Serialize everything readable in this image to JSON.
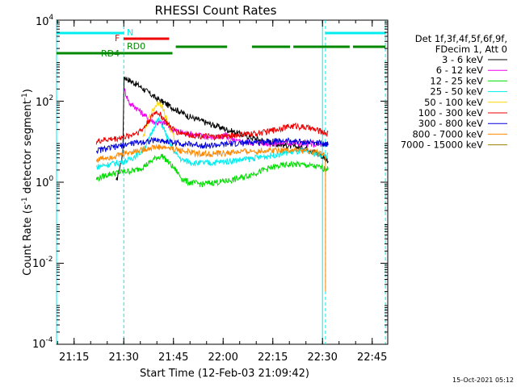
{
  "chart_data": {
    "type": "line",
    "title": "RHESSI Count Rates",
    "xlabel": "Start Time (12-Feb-03 21:09:42)",
    "ylabel_main": "Count Rate (s",
    "ylabel_sup1": "-1",
    "ylabel_mid": " detector segment",
    "ylabel_sup2": "-1",
    "ylabel_end": ")",
    "yscale": "log",
    "ylim": [
      0.0001,
      10000
    ],
    "xlim_minutes": [
      0,
      100
    ],
    "x_ticks": [
      {
        "label": "21:15",
        "minute": 5.3
      },
      {
        "label": "21:30",
        "minute": 20.3
      },
      {
        "label": "21:45",
        "minute": 35.3
      },
      {
        "label": "22:00",
        "minute": 50.3
      },
      {
        "label": "22:15",
        "minute": 65.3
      },
      {
        "label": "22:30",
        "minute": 80.3
      },
      {
        "label": "22:45",
        "minute": 95.3
      }
    ],
    "y_ticks": [
      {
        "base": "10",
        "exp": "4",
        "value": 10000
      },
      {
        "base": "10",
        "exp": "2",
        "value": 100
      },
      {
        "base": "10",
        "exp": "0",
        "value": 1
      },
      {
        "base": "10",
        "exp": "-2",
        "value": 0.01
      },
      {
        "base": "10",
        "exp": "-4",
        "value": 0.0001
      }
    ],
    "legend_header": [
      "Det 1f,3f,4f,5f,6f,9f,",
      "FDecim 1, Att 0"
    ],
    "legend_position": "right, outside plot",
    "series": [
      {
        "name": "3 - 6 keV",
        "color": "#000000",
        "points": [
          [
            18,
            1
          ],
          [
            19,
            2.2
          ],
          [
            20,
            5
          ],
          [
            20.4,
            400
          ],
          [
            22,
            330
          ],
          [
            25,
            240
          ],
          [
            30,
            120
          ],
          [
            35,
            70
          ],
          [
            40,
            42
          ],
          [
            45,
            30
          ],
          [
            50,
            22
          ],
          [
            55,
            16
          ],
          [
            60,
            12
          ],
          [
            64,
            10
          ],
          [
            68,
            8.5
          ],
          [
            72,
            7.5
          ],
          [
            76,
            7
          ],
          [
            78,
            5.5
          ],
          [
            80,
            4.5
          ],
          [
            82,
            3.5
          ]
        ]
      },
      {
        "name": "6 - 12 keV",
        "color": "#ee00ee",
        "points": [
          [
            20.4,
            200
          ],
          [
            22,
            90
          ],
          [
            24,
            70
          ],
          [
            26,
            50
          ],
          [
            28,
            35
          ],
          [
            30,
            30
          ],
          [
            33,
            28
          ],
          [
            35,
            20
          ],
          [
            38,
            17
          ],
          [
            40,
            16
          ],
          [
            42,
            15
          ],
          [
            44,
            14
          ],
          [
            46,
            13
          ],
          [
            48,
            13
          ],
          [
            50,
            12.5
          ],
          [
            51,
            16
          ],
          [
            52,
            11
          ],
          [
            55,
            10
          ],
          [
            60,
            9.5
          ],
          [
            65,
            9
          ],
          [
            70,
            9.5
          ],
          [
            75,
            9
          ],
          [
            80,
            8.5
          ]
        ]
      },
      {
        "name": "12 - 25 keV",
        "color": "#00dd00",
        "points": [
          [
            12,
            1.2
          ],
          [
            14,
            1.4
          ],
          [
            16,
            1.6
          ],
          [
            18,
            1.7
          ],
          [
            20,
            1.8
          ],
          [
            24,
            2
          ],
          [
            26,
            2.4
          ],
          [
            28,
            3
          ],
          [
            30,
            4
          ],
          [
            32,
            4.5
          ],
          [
            34,
            3
          ],
          [
            36,
            2
          ],
          [
            38,
            1.2
          ],
          [
            40,
            1
          ],
          [
            44,
            0.9
          ],
          [
            48,
            1
          ],
          [
            52,
            1.1
          ],
          [
            56,
            1.3
          ],
          [
            60,
            1.7
          ],
          [
            64,
            2.2
          ],
          [
            68,
            2.6
          ],
          [
            72,
            2.8
          ],
          [
            76,
            2.6
          ],
          [
            80,
            2.3
          ],
          [
            82,
            2.1
          ]
        ]
      },
      {
        "name": "25 - 50 keV",
        "color": "#00eeee",
        "points": [
          [
            12,
            2.4
          ],
          [
            14,
            2.6
          ],
          [
            16,
            2.8
          ],
          [
            18,
            3
          ],
          [
            22,
            3.6
          ],
          [
            26,
            6
          ],
          [
            28,
            12
          ],
          [
            30,
            30
          ],
          [
            31,
            35
          ],
          [
            32,
            25
          ],
          [
            34,
            10
          ],
          [
            36,
            5
          ],
          [
            38,
            3.5
          ],
          [
            42,
            3
          ],
          [
            46,
            3
          ],
          [
            50,
            3.2
          ],
          [
            54,
            3.5
          ],
          [
            58,
            3.8
          ],
          [
            62,
            4.2
          ],
          [
            66,
            4.8
          ],
          [
            70,
            5.5
          ],
          [
            74,
            5.8
          ],
          [
            78,
            5.2
          ],
          [
            82,
            4.5
          ]
        ]
      },
      {
        "name": "50 - 100 keV",
        "color": "#ffd500",
        "points": [
          [
            26,
            12
          ],
          [
            28,
            40
          ],
          [
            30,
            80
          ],
          [
            31,
            100
          ],
          [
            32,
            70
          ],
          [
            34,
            25
          ],
          [
            36,
            10
          ]
        ]
      },
      {
        "name": "100 - 300 keV",
        "color": "#ee0000",
        "points": [
          [
            12,
            10
          ],
          [
            14,
            11
          ],
          [
            18,
            12
          ],
          [
            22,
            14
          ],
          [
            26,
            20
          ],
          [
            28,
            35
          ],
          [
            30,
            55
          ],
          [
            31,
            50
          ],
          [
            32,
            40
          ],
          [
            34,
            25
          ],
          [
            36,
            18
          ],
          [
            40,
            15
          ],
          [
            44,
            14
          ],
          [
            48,
            13
          ],
          [
            52,
            14
          ],
          [
            56,
            15
          ],
          [
            60,
            16
          ],
          [
            64,
            18
          ],
          [
            68,
            22
          ],
          [
            72,
            25
          ],
          [
            76,
            22
          ],
          [
            80,
            18
          ],
          [
            82,
            16
          ]
        ]
      },
      {
        "name": "300 - 800 keV",
        "color": "#0000dd",
        "points": [
          [
            12,
            6
          ],
          [
            14,
            6.5
          ],
          [
            18,
            7.5
          ],
          [
            22,
            9
          ],
          [
            26,
            10
          ],
          [
            30,
            11
          ],
          [
            34,
            10
          ],
          [
            38,
            9
          ],
          [
            42,
            8.5
          ],
          [
            46,
            8
          ],
          [
            50,
            8.5
          ],
          [
            54,
            9
          ],
          [
            58,
            9.5
          ],
          [
            62,
            10
          ],
          [
            66,
            10.5
          ],
          [
            70,
            10.5
          ],
          [
            74,
            10
          ],
          [
            78,
            9.5
          ],
          [
            82,
            9
          ]
        ]
      },
      {
        "name": "800 - 7000 keV",
        "color": "#ff8800",
        "points": [
          [
            12,
            3.5
          ],
          [
            14,
            4
          ],
          [
            18,
            4.5
          ],
          [
            22,
            5.5
          ],
          [
            26,
            6.5
          ],
          [
            30,
            7.5
          ],
          [
            34,
            7
          ],
          [
            38,
            6
          ],
          [
            42,
            5.2
          ],
          [
            46,
            5
          ],
          [
            50,
            5.2
          ],
          [
            54,
            5.5
          ],
          [
            58,
            5.8
          ],
          [
            62,
            6
          ],
          [
            66,
            6.3
          ],
          [
            70,
            6.3
          ],
          [
            74,
            6
          ],
          [
            78,
            5.6
          ],
          [
            80,
            5
          ],
          [
            81.2,
            5
          ],
          [
            81.2,
            0.002
          ]
        ]
      },
      {
        "name": "7000 - 15000 keV",
        "color": "#9a7e00",
        "points": []
      }
    ],
    "state_bars": [
      {
        "label": "N",
        "color": "#00eeee",
        "segments": [
          [
            0,
            20.3
          ],
          [
            81.2,
            99.3
          ]
        ]
      },
      {
        "label": "F",
        "color": "#ee0000",
        "segments": [
          [
            20.3,
            34
          ]
        ]
      },
      {
        "label": "RD0",
        "color": "#008800",
        "segments": [
          [
            36,
            51.5
          ],
          [
            59,
            70.5
          ],
          [
            71.5,
            88.5
          ],
          [
            89.5,
            99.3
          ]
        ]
      },
      {
        "label": "RD4",
        "color": "#008800",
        "segments": [
          [
            0,
            20.3
          ],
          [
            20.3,
            35
          ]
        ]
      }
    ],
    "vertical_markers": {
      "solid": [
        0,
        80.3
      ],
      "dashed": [
        20.3,
        81.2,
        99.3
      ]
    },
    "footer_stamp": "15-Oct-2021 05:12"
  }
}
